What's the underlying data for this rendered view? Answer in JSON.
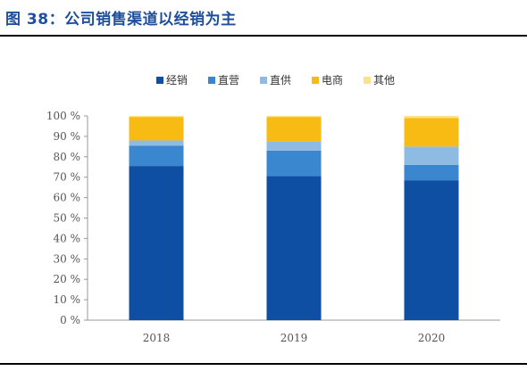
{
  "figure": {
    "title": "图 38：公司销售渠道以经销为主"
  },
  "chart_data": {
    "type": "bar",
    "stacked": true,
    "categories": [
      "2018",
      "2019",
      "2020"
    ],
    "series": [
      {
        "name": "经销",
        "color": "#0e4ea3",
        "values": [
          75.5,
          70.5,
          68.5
        ]
      },
      {
        "name": "直营",
        "color": "#3a86cf",
        "values": [
          10.0,
          12.5,
          7.5
        ]
      },
      {
        "name": "直供",
        "color": "#8fbbe3",
        "values": [
          2.5,
          4.5,
          9.0
        ]
      },
      {
        "name": "电商",
        "color": "#f8bb14",
        "values": [
          11.5,
          12.0,
          14.0
        ]
      },
      {
        "name": "其他",
        "color": "#ffe08a",
        "values": [
          0.5,
          0.5,
          1.0
        ]
      }
    ],
    "yticks": [
      "0 %",
      "10 %",
      "20 %",
      "30 %",
      "40 %",
      "50 %",
      "60 %",
      "70 %",
      "80 %",
      "90 %",
      "100 %"
    ],
    "ylim": [
      0,
      100
    ],
    "grid": false,
    "legend": "top-center"
  }
}
